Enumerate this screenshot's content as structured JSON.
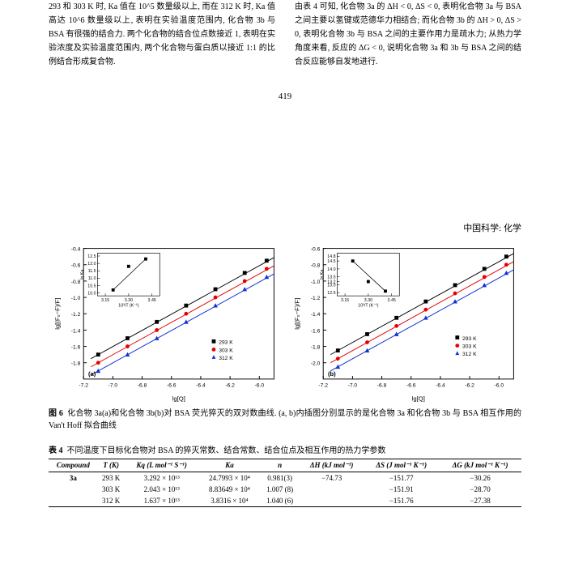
{
  "top_paragraphs": {
    "left": "293 和 303 K 时, Ka 值在 10^5 数量级以上, 而在 312 K 时, Ka 值高达 10^6 数量级以上, 表明在实验温度范围内, 化合物 3b 与 BSA 有很强的结合力. 两个化合物的结合位点数接近 1, 表明在实验浓度及实验温度范围内, 两个化合物与蛋白质以接近 1:1 的比例结合形成复合物.",
    "right": "由表 4 可知, 化合物 3a 的 ΔH < 0, ΔS < 0, 表明化合物 3a 与 BSA 之间主要以氢键或范德华力相结合; 而化合物 3b 的 ΔH > 0, ΔS > 0, 表明化合物 3b 与 BSA 之间的主要作用力是疏水力; 从热力学角度来看, 反应的 ΔG < 0, 说明化合物 3a 和 3b 与 BSA 之间的结合反应能够自发地进行."
  },
  "page_number": "419",
  "running_head": "中国科学: 化学",
  "figure6": {
    "caption_prefix": "图 6",
    "caption": "化合物 3a(a)和化合物 3b(b)对 BSA 荧光猝灭的双对数曲线. (a, b)内插图分别显示的是化合物 3a 和化合物 3b 与 BSA 相互作用的 Van't Hoff 拟合曲线",
    "colors": {
      "293K": "#000000",
      "303K": "#e50000",
      "312K": "#1030d0",
      "axis": "#000000",
      "bg": "#ffffff"
    },
    "legend": [
      "293 K",
      "303 K",
      "312 K"
    ],
    "plot_a": {
      "xlabel": "lg[Q]",
      "ylabel": "lg[(F₀−F)/F]",
      "xlim": [
        -7.2,
        -5.9
      ],
      "ylim": [
        -2.0,
        -0.4
      ],
      "xticks": [
        -7.2,
        -7.0,
        -6.8,
        -6.6,
        -6.4,
        -6.2,
        -6.0
      ],
      "yticks": [
        -1.8,
        -1.6,
        -1.4,
        -1.2,
        -1.0,
        -0.8,
        -0.6,
        -0.4
      ],
      "series": {
        "293K": {
          "x": [
            -7.1,
            -6.9,
            -6.7,
            -6.5,
            -6.3,
            -6.1,
            -5.95
          ],
          "y": [
            -1.7,
            -1.5,
            -1.3,
            -1.1,
            -0.9,
            -0.7,
            -0.55
          ]
        },
        "303K": {
          "x": [
            -7.1,
            -6.9,
            -6.7,
            -6.5,
            -6.3,
            -6.1,
            -5.95
          ],
          "y": [
            -1.8,
            -1.6,
            -1.4,
            -1.2,
            -1.0,
            -0.8,
            -0.65
          ]
        },
        "312K": {
          "x": [
            -7.1,
            -6.9,
            -6.7,
            -6.5,
            -6.3,
            -6.1,
            -5.95
          ],
          "y": [
            -1.9,
            -1.7,
            -1.5,
            -1.3,
            -1.1,
            -0.9,
            -0.75
          ]
        }
      },
      "inset": {
        "xlabel": "10³/T (K⁻¹)",
        "ylabel": "ln Ka",
        "xticks": [
          3.15,
          3.3,
          3.45
        ],
        "yticks": [
          10.0,
          10.5,
          11.0,
          11.5,
          12.0,
          12.5
        ],
        "points": {
          "x": [
            3.2,
            3.3,
            3.41
          ],
          "y": [
            10.2,
            11.8,
            12.3
          ]
        }
      },
      "panel_label": "(a)"
    },
    "plot_b": {
      "xlabel": "lg[Q]",
      "ylabel": "lg[(F₀−F)/F]",
      "xlim": [
        -7.2,
        -5.9
      ],
      "ylim": [
        -2.2,
        -0.6
      ],
      "xticks": [
        -7.2,
        -7.0,
        -6.8,
        -6.6,
        -6.4,
        -6.2,
        -6.0
      ],
      "yticks": [
        -2.0,
        -1.8,
        -1.6,
        -1.4,
        -1.2,
        -1.0,
        -0.8,
        -0.6
      ],
      "series": {
        "293K": {
          "x": [
            -7.1,
            -6.9,
            -6.7,
            -6.5,
            -6.3,
            -6.1,
            -5.95
          ],
          "y": [
            -1.85,
            -1.65,
            -1.45,
            -1.25,
            -1.05,
            -0.85,
            -0.7
          ]
        },
        "303K": {
          "x": [
            -7.1,
            -6.9,
            -6.7,
            -6.5,
            -6.3,
            -6.1,
            -5.95
          ],
          "y": [
            -1.95,
            -1.75,
            -1.55,
            -1.35,
            -1.15,
            -0.95,
            -0.8
          ]
        },
        "312K": {
          "x": [
            -7.1,
            -6.9,
            -6.7,
            -6.5,
            -6.3,
            -6.1,
            -5.95
          ],
          "y": [
            -2.05,
            -1.85,
            -1.65,
            -1.45,
            -1.25,
            -1.05,
            -0.9
          ]
        }
      },
      "inset": {
        "xlabel": "10³/T (K⁻¹)",
        "ylabel": "ln Ka",
        "xticks": [
          3.15,
          3.3,
          3.45
        ],
        "yticks": [
          12.5,
          13.0,
          13.2,
          13.5,
          14.0,
          14.5,
          14.8
        ],
        "points": {
          "x": [
            3.2,
            3.3,
            3.41
          ],
          "y": [
            14.5,
            13.2,
            12.6
          ]
        }
      },
      "panel_label": "(b)"
    }
  },
  "table4": {
    "title_prefix": "表 4",
    "title": "不同温度下目标化合物对 BSA 的猝灭常数、结合常数、结合位点及相互作用的热力学参数",
    "columns": [
      "Compound",
      "T (K)",
      "Kq (L mol⁻¹ S⁻¹)",
      "Ka",
      "n",
      "ΔH (kJ mol⁻¹)",
      "ΔS (J mol⁻¹ K⁻¹)",
      "ΔG (kJ mol⁻¹ K⁻¹)"
    ],
    "rows": [
      [
        "3a",
        "293 K",
        "3.292 × 10¹³",
        "24.7993 × 10⁴",
        "0.981(3)",
        "−74.73",
        "−151.77",
        "−30.26"
      ],
      [
        "",
        "303 K",
        "2.043 × 10¹³",
        "8.83649 × 10⁴",
        "1.007 (8)",
        "",
        "−151.91",
        "−28.70"
      ],
      [
        "",
        "312 K",
        "1.637 × 10¹³",
        "3.8316 × 10⁴",
        "1.040 (6)",
        "",
        "−151.76",
        "−27.38"
      ]
    ]
  }
}
